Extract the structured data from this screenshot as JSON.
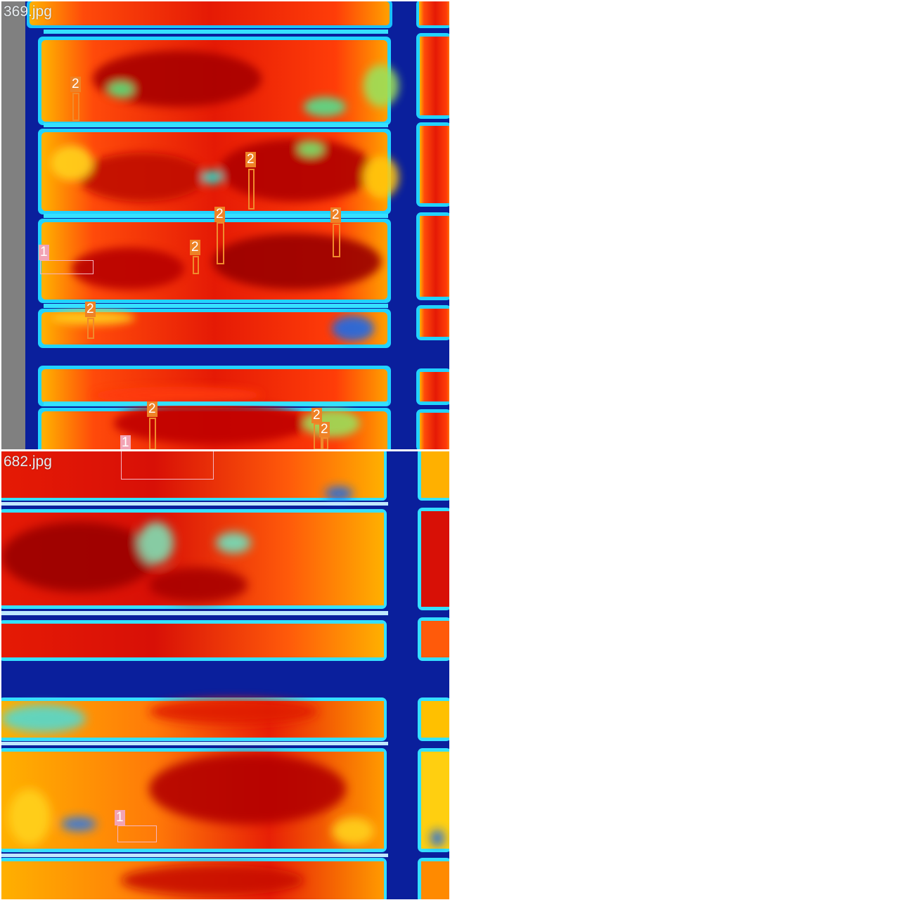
{
  "images": [
    {
      "filename": "369.jpg",
      "detections": [
        {
          "label": "2"
        },
        {
          "label": "2"
        },
        {
          "label": "2"
        },
        {
          "label": "2"
        },
        {
          "label": "2"
        },
        {
          "label": "1"
        },
        {
          "label": "2"
        },
        {
          "label": "2"
        },
        {
          "label": "2"
        },
        {
          "label": "2"
        },
        {
          "label": "1"
        }
      ]
    },
    {
      "filename": "682.jpg",
      "detections": [
        {
          "label": "1"
        }
      ]
    }
  ],
  "colors": {
    "class_1_box": "#f4b6c2",
    "class_1_tag": "#f2a3b4",
    "class_2_box": "#f08a2c",
    "class_2_tag": "#ee8226",
    "frame_blue": "#0a1f9c",
    "cell_hot": "#d81e05",
    "cell_warm": "#ff8c00",
    "cell_cool": "#6be36b"
  }
}
